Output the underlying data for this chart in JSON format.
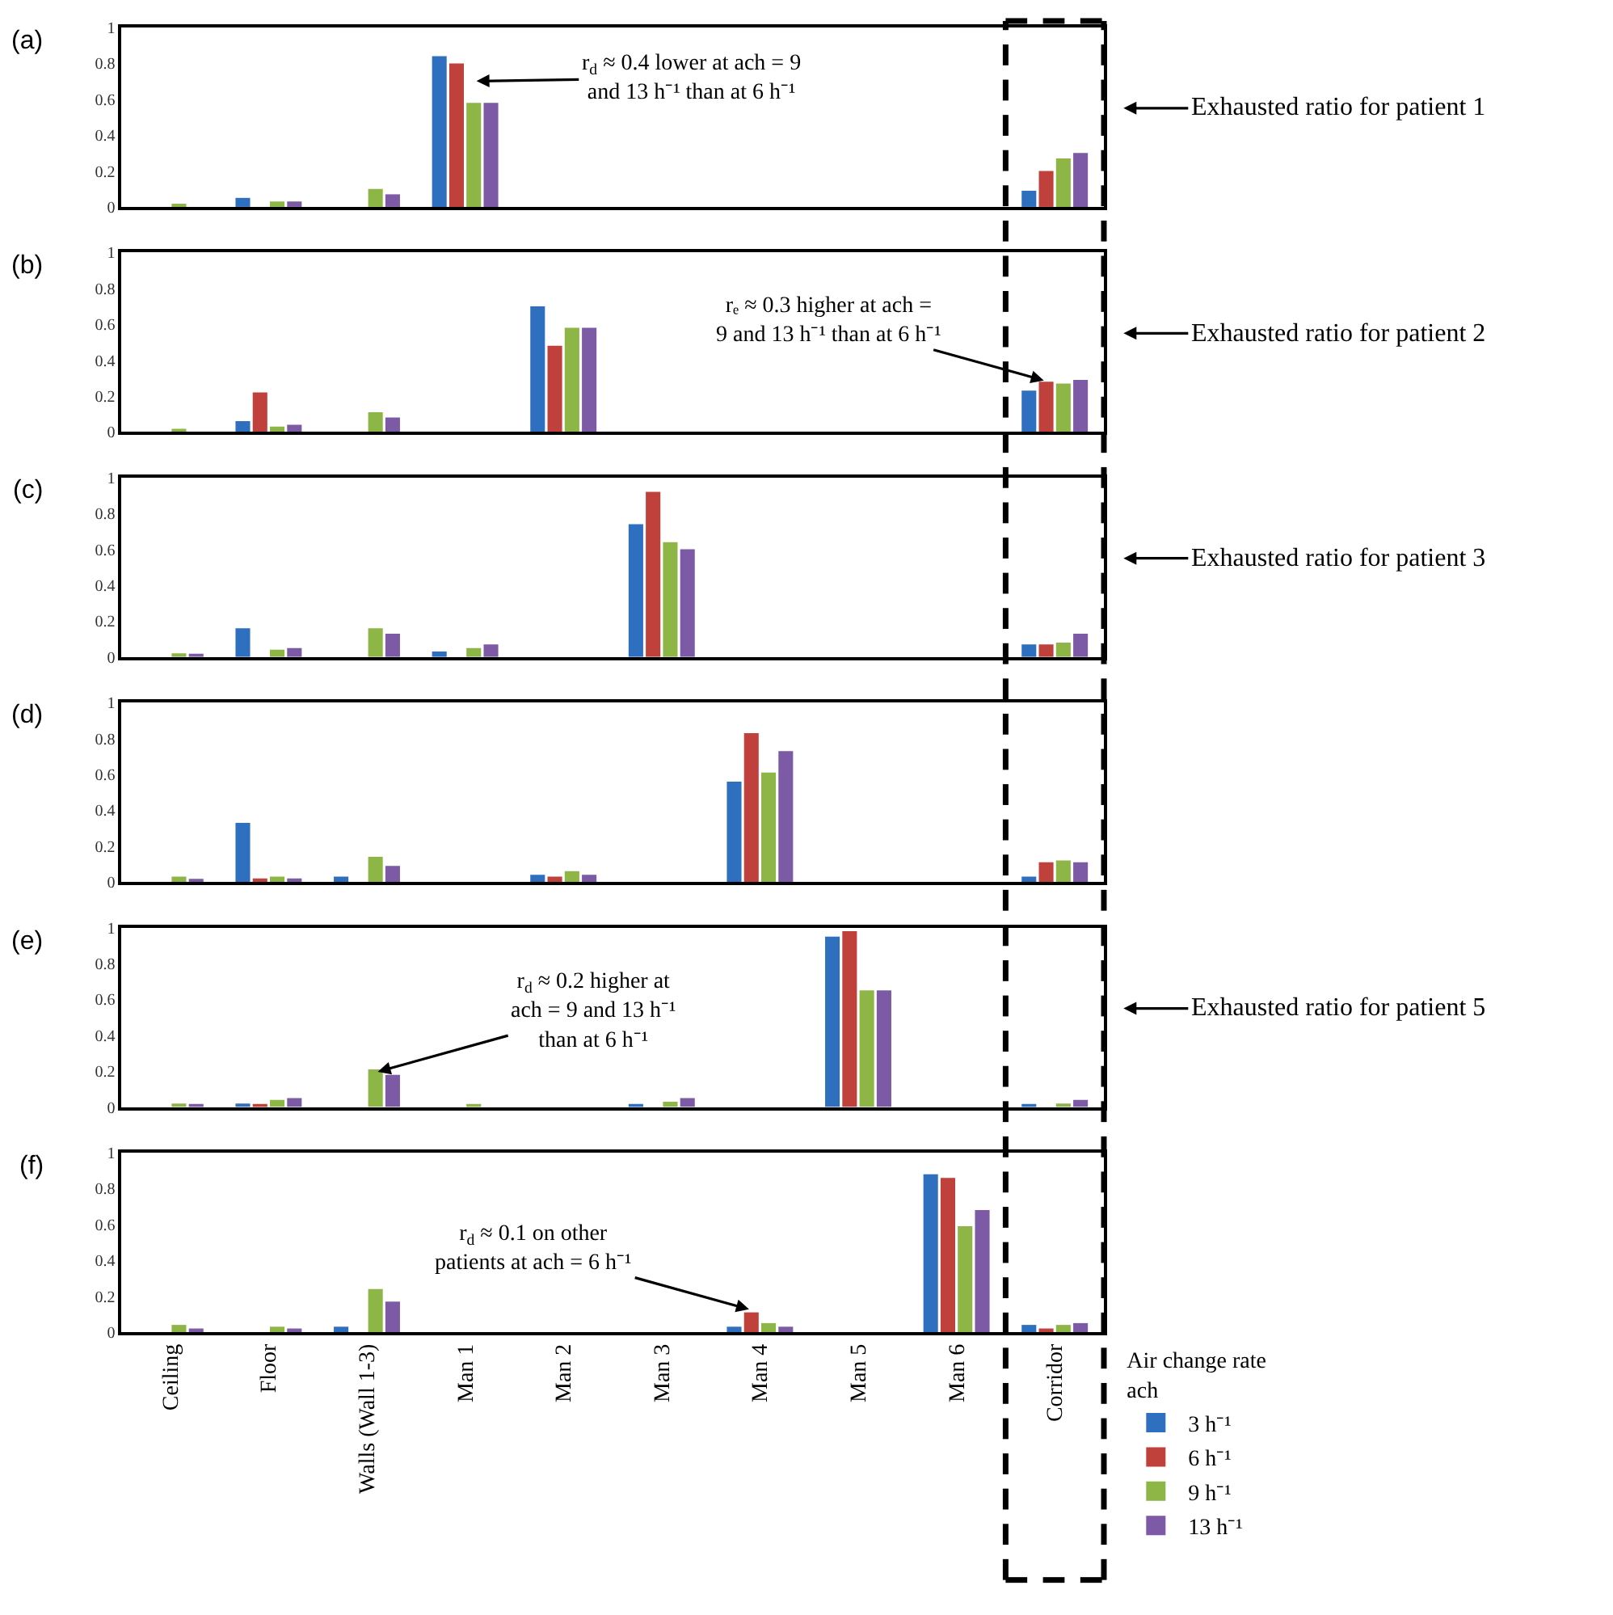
{
  "chart_data": [
    {
      "type": "bar",
      "title": "(a)",
      "categories": [
        "Ceiling",
        "Floor",
        "Walls (Wall 1-3)",
        "Man 1",
        "Man 2",
        "Man 3",
        "Man 4",
        "Man 5",
        "Man 6",
        "Corridor"
      ],
      "ylim": [
        0,
        1
      ],
      "yticks": [
        0,
        0.2,
        0.4,
        0.6,
        0.8,
        1
      ],
      "tick_labels": "y",
      "series": [
        {
          "color": "#2f6fbf",
          "values": [
            0,
            0.05,
            0,
            0.84,
            0,
            0,
            0,
            0,
            0,
            0.09
          ]
        },
        {
          "color": "#c0413b",
          "values": [
            0,
            0,
            0,
            0.8,
            0,
            0,
            0,
            0,
            0,
            0.2
          ]
        },
        {
          "color": "#8db646",
          "values": [
            0.01,
            0.03,
            0.1,
            0.58,
            0,
            0,
            0,
            0,
            0,
            0.27
          ]
        },
        {
          "color": "#7d5aa6",
          "values": [
            0,
            0.03,
            0.07,
            0.58,
            0,
            0,
            0,
            0,
            0,
            0.3
          ]
        }
      ],
      "annotations": [
        {
          "text": "r$_{d}$ ≈ 0.4 lower at ach = 9\nand 13 h⁻¹ than at 6 h⁻¹",
          "x": "Man 1",
          "y": 0.7
        },
        "Exhausted ratio for patient 1"
      ]
    },
    {
      "type": "bar",
      "title": "(b)",
      "categories": [
        "Ceiling",
        "Floor",
        "Walls (Wall 1-3)",
        "Man 1",
        "Man 2",
        "Man 3",
        "Man 4",
        "Man 5",
        "Man 6",
        "Corridor"
      ],
      "ylim": [
        0,
        1
      ],
      "yticks": [
        0,
        0.2,
        0.4,
        0.6,
        0.8,
        1
      ],
      "tick_labels": "y",
      "series": [
        {
          "color": "#2f6fbf",
          "values": [
            0,
            0.06,
            0,
            0,
            0.7,
            0,
            0,
            0,
            0,
            0.23
          ]
        },
        {
          "color": "#c0413b",
          "values": [
            0,
            0.22,
            0,
            0,
            0.48,
            0,
            0,
            0,
            0,
            0.28
          ]
        },
        {
          "color": "#8db646",
          "values": [
            0.01,
            0.03,
            0.11,
            0,
            0.58,
            0,
            0,
            0,
            0,
            0.27
          ]
        },
        {
          "color": "#7d5aa6",
          "values": [
            0,
            0.04,
            0.08,
            0,
            0.58,
            0,
            0,
            0,
            0,
            0.29
          ]
        }
      ],
      "annotations": [
        {
          "text": "rₑ ≈ 0.3 higher at ach =\n9 and 13 h⁻¹ than at 6 h⁻¹",
          "x": "Corridor",
          "y": 0.27
        },
        "Exhausted ratio for patient 2"
      ]
    },
    {
      "type": "bar",
      "title": "(c)",
      "categories": [
        "Ceiling",
        "Floor",
        "Walls (Wall 1-3)",
        "Man 1",
        "Man 2",
        "Man 3",
        "Man 4",
        "Man 5",
        "Man 6",
        "Corridor"
      ],
      "ylim": [
        0,
        1
      ],
      "yticks": [
        0,
        0.2,
        0.4,
        0.6,
        0.8,
        1
      ],
      "tick_labels": "y",
      "series": [
        {
          "color": "#2f6fbf",
          "values": [
            0,
            0.16,
            0,
            0.03,
            0,
            0.74,
            0,
            0,
            0,
            0.07
          ]
        },
        {
          "color": "#c0413b",
          "values": [
            0,
            0,
            0,
            0,
            0,
            0.92,
            0,
            0,
            0,
            0.07
          ]
        },
        {
          "color": "#8db646",
          "values": [
            0.02,
            0.04,
            0.16,
            0.05,
            0,
            0.64,
            0,
            0,
            0,
            0.08
          ]
        },
        {
          "color": "#7d5aa6",
          "values": [
            0.01,
            0.05,
            0.13,
            0.07,
            0,
            0.6,
            0,
            0,
            0,
            0.13
          ]
        }
      ],
      "annotations": [
        "Exhausted ratio for patient 3"
      ]
    },
    {
      "type": "bar",
      "title": "(d)",
      "categories": [
        "Ceiling",
        "Floor",
        "Walls (Wall 1-3)",
        "Man 1",
        "Man 2",
        "Man 3",
        "Man 4",
        "Man 5",
        "Man 6",
        "Corridor"
      ],
      "ylim": [
        0,
        1
      ],
      "yticks": [
        0,
        0.2,
        0.4,
        0.6,
        0.8,
        1
      ],
      "tick_labels": "y",
      "series": [
        {
          "color": "#2f6fbf",
          "values": [
            0,
            0.33,
            0.03,
            0,
            0.04,
            0,
            0.56,
            0,
            0,
            0.03
          ]
        },
        {
          "color": "#c0413b",
          "values": [
            0,
            0.02,
            0,
            0,
            0.03,
            0,
            0.83,
            0,
            0,
            0.11
          ]
        },
        {
          "color": "#8db646",
          "values": [
            0.03,
            0.03,
            0.14,
            0,
            0.06,
            0,
            0.61,
            0,
            0,
            0.12
          ]
        },
        {
          "color": "#7d5aa6",
          "values": [
            0.01,
            0.02,
            0.09,
            0,
            0.04,
            0,
            0.73,
            0,
            0,
            0.11
          ]
        }
      ]
    },
    {
      "type": "bar",
      "title": "(e)",
      "categories": [
        "Ceiling",
        "Floor",
        "Walls (Wall 1-3)",
        "Man 1",
        "Man 2",
        "Man 3",
        "Man 4",
        "Man 5",
        "Man 6",
        "Corridor"
      ],
      "ylim": [
        0,
        1
      ],
      "yticks": [
        0,
        0.2,
        0.4,
        0.6,
        0.8,
        1
      ],
      "tick_labels": "y",
      "series": [
        {
          "color": "#2f6fbf",
          "values": [
            0,
            0.02,
            0,
            0,
            0,
            0.01,
            0,
            0.95,
            0,
            0.01
          ]
        },
        {
          "color": "#c0413b",
          "values": [
            0,
            0.01,
            0,
            0,
            0,
            0,
            0,
            0.98,
            0,
            0
          ]
        },
        {
          "color": "#8db646",
          "values": [
            0.02,
            0.04,
            0.21,
            0.01,
            0,
            0.03,
            0,
            0.65,
            0,
            0.02
          ]
        },
        {
          "color": "#7d5aa6",
          "values": [
            0.01,
            0.05,
            0.18,
            0,
            0,
            0.05,
            0,
            0.65,
            0,
            0.04
          ]
        }
      ],
      "annotations": [
        {
          "text": "r$_{d}$ ≈ 0.2 higher at\nach = 9 and 13 h⁻¹\nthan at 6 h⁻¹",
          "x": "Walls (Wall 1-3)",
          "y": 0.18
        },
        "Exhausted ratio for patient 5"
      ]
    },
    {
      "type": "bar",
      "title": "(f)",
      "categories": [
        "Ceiling",
        "Floor",
        "Walls (Wall 1-3)",
        "Man 1",
        "Man 2",
        "Man 3",
        "Man 4",
        "Man 5",
        "Man 6",
        "Corridor"
      ],
      "ylim": [
        0,
        1
      ],
      "yticks": [
        0,
        0.2,
        0.4,
        0.6,
        0.8,
        1
      ],
      "series": [
        {
          "name": "3 h⁻¹",
          "color": "#2f6fbf",
          "values": [
            0,
            0,
            0.03,
            0,
            0,
            0,
            0.03,
            0,
            0.88,
            0.04
          ]
        },
        {
          "name": "6 h⁻¹",
          "color": "#c0413b",
          "values": [
            0,
            0,
            0,
            0,
            0,
            0,
            0.11,
            0,
            0.86,
            0.02
          ]
        },
        {
          "name": "9 h⁻¹",
          "color": "#8db646",
          "values": [
            0.04,
            0.03,
            0.24,
            0,
            0,
            0,
            0.05,
            0,
            0.59,
            0.04
          ]
        },
        {
          "name": "13 h⁻¹",
          "color": "#7d5aa6",
          "values": [
            0.02,
            0.02,
            0.17,
            0,
            0,
            0,
            0.03,
            0,
            0.68,
            0.05
          ]
        }
      ],
      "annotations": [
        {
          "text": "r$_{d}$ ≈ 0.1 on other\npatients at ach = 6 h⁻¹",
          "x": "Man 4",
          "y": 0.11
        }
      ],
      "legend": "bottom right",
      "legend_title": "Air change rate\nach"
    }
  ]
}
